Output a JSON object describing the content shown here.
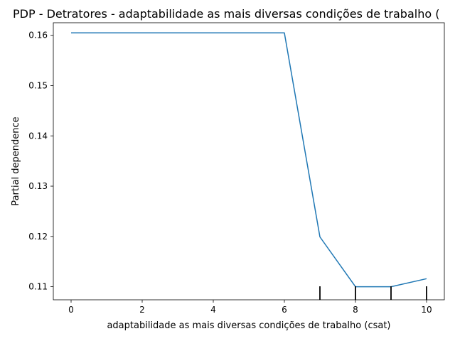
{
  "chart_data": {
    "type": "line",
    "title": "PDP - Detratores - adaptabilidade as mais diversas condições de trabalho (",
    "xlabel": "adaptabilidade as mais diversas condições de trabalho (csat)",
    "ylabel": "Partial dependence",
    "xlim": [
      -0.5,
      10.5
    ],
    "ylim": [
      0.1074,
      0.1625
    ],
    "xticks": [
      0,
      2,
      4,
      6,
      8,
      10
    ],
    "yticks": [
      0.11,
      0.12,
      0.13,
      0.14,
      0.15,
      0.16
    ],
    "ytick_labels": [
      "0.11",
      "0.12",
      "0.13",
      "0.14",
      "0.15",
      "0.16"
    ],
    "grid": false,
    "legend": "none",
    "series": [
      {
        "color": "#1f77b4",
        "x": [
          0,
          6,
          7,
          8,
          9,
          10
        ],
        "y": [
          0.1605,
          0.1605,
          0.1199,
          0.11,
          0.11,
          0.1116
        ]
      }
    ],
    "rug": {
      "color": "#000000",
      "x": [
        7,
        8,
        9,
        10
      ]
    }
  }
}
